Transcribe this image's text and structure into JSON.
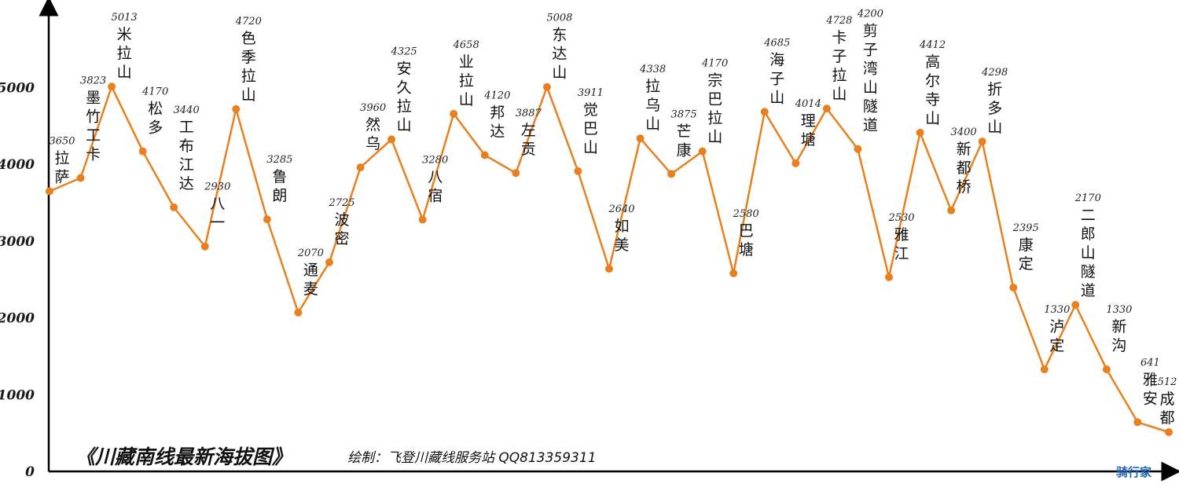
{
  "chart_data": {
    "type": "line",
    "title": "《川藏南线最新海拔图》",
    "subtitle": "绘制：飞登川藏线服务站 QQ813359311",
    "ylim": [
      0,
      5600
    ],
    "yticks": [
      0,
      1000,
      2000,
      3000,
      4000,
      5000
    ],
    "grid": false,
    "color": "#e8801f",
    "points": [
      {
        "name": "拉萨",
        "value": 3650
      },
      {
        "name": "墨竹工卡",
        "value": 3823
      },
      {
        "name": "米拉山",
        "value": 5013
      },
      {
        "name": "松多",
        "value": 4170
      },
      {
        "name": "工布江达",
        "value": 3440
      },
      {
        "name": "八一",
        "value": 2930
      },
      {
        "name": "色季拉山",
        "value": 4720
      },
      {
        "name": "鲁朗",
        "value": 3285
      },
      {
        "name": "通麦",
        "value": 2070
      },
      {
        "name": "波密",
        "value": 2725
      },
      {
        "name": "然乌",
        "value": 3960
      },
      {
        "name": "安久拉山",
        "value": 4325
      },
      {
        "name": "八宿",
        "value": 3280
      },
      {
        "name": "业拉山",
        "value": 4658
      },
      {
        "name": "邦达",
        "value": 4120
      },
      {
        "name": "左贡",
        "value": 3887
      },
      {
        "name": "东达山",
        "value": 5008
      },
      {
        "name": "觉巴山",
        "value": 3911
      },
      {
        "name": "如美",
        "value": 2640
      },
      {
        "name": "拉乌山",
        "value": 4338
      },
      {
        "name": "芒康",
        "value": 3875
      },
      {
        "name": "宗巴拉山",
        "value": 4170
      },
      {
        "name": "巴塘",
        "value": 2580
      },
      {
        "name": "海子山",
        "value": 4685
      },
      {
        "name": "理塘",
        "value": 4014
      },
      {
        "name": "卡子拉山",
        "value": 4728
      },
      {
        "name": "剪子湾山隧道",
        "value": 4200
      },
      {
        "name": "雅江",
        "value": 2530
      },
      {
        "name": "高尔寺山",
        "value": 4412
      },
      {
        "name": "新都桥",
        "value": 3400
      },
      {
        "name": "折多山",
        "value": 4298
      },
      {
        "name": "康定",
        "value": 2395
      },
      {
        "name": "泸定",
        "value": 1330
      },
      {
        "name": "二郎山隧道",
        "value": 2170
      },
      {
        "name": "新沟",
        "value": 1330
      },
      {
        "name": "雅安",
        "value": 641
      },
      {
        "name": "成都",
        "value": 512
      }
    ]
  },
  "watermark": "骑行家"
}
